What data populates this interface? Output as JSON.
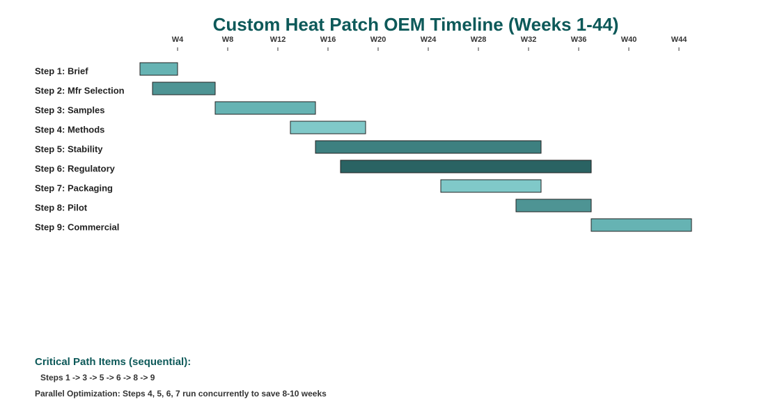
{
  "chart_data": {
    "type": "gantt",
    "title": "Custom Heat Patch OEM Timeline (Weeks 1-44)",
    "categories": [
      "Step 1: Brief",
      "Step 2: Mfr Selection",
      "Step 3: Samples",
      "Step 4: Methods",
      "Step 5: Stability",
      "Step 6: Regulatory",
      "Step 7: Packaging",
      "Step 8: Pilot",
      "Step 9: Commercial"
    ],
    "start": [
      1,
      2,
      7,
      13,
      15,
      17,
      25,
      31,
      37
    ],
    "end": [
      4,
      7,
      15,
      19,
      33,
      37,
      33,
      37,
      45
    ],
    "colors": [
      "#66b3b3",
      "#4e9494",
      "#66b3b3",
      "#80c9c9",
      "#3d8080",
      "#2a6363",
      "#80c9c9",
      "#4e9494",
      "#66b3b3"
    ],
    "xlim": [
      0,
      50
    ],
    "xticks": [
      {
        "value": 4,
        "label": "W4"
      },
      {
        "value": 8,
        "label": "W8"
      },
      {
        "value": 12,
        "label": "W12"
      },
      {
        "value": 16,
        "label": "W16"
      },
      {
        "value": 20,
        "label": "W20"
      },
      {
        "value": 24,
        "label": "W24"
      },
      {
        "value": 28,
        "label": "W28"
      },
      {
        "value": 32,
        "label": "W32"
      },
      {
        "value": 36,
        "label": "W36"
      },
      {
        "value": 40,
        "label": "W40"
      },
      {
        "value": 44,
        "label": "W44"
      }
    ],
    "annotations": [
      "Critical Path Items (sequential):",
      "Steps 1 -> 3 -> 5 -> 6 -> 8 -> 9",
      "Parallel Optimization: Steps 4, 5, 6, 7 run concurrently to save 8-10 weeks"
    ]
  }
}
